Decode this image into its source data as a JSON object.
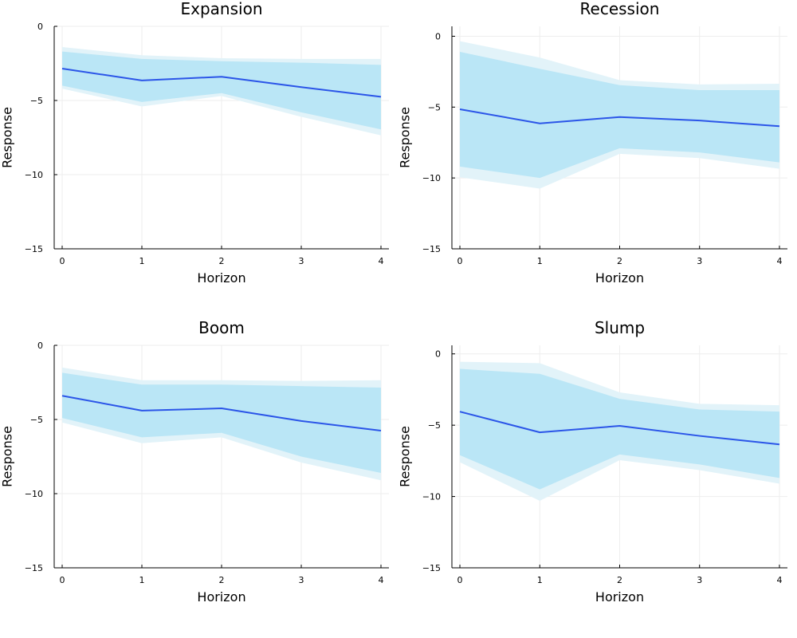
{
  "figure": {
    "colors": {
      "line": "#2b55e8",
      "inner_band": "#bae6f6",
      "outer_band": "#e2f3f9",
      "grid": "#eeeeee",
      "axis": "#000000"
    }
  },
  "chart_data": [
    {
      "type": "line",
      "title": "Expansion",
      "xlabel": "Horizon",
      "ylabel": "Response",
      "x": [
        0,
        1,
        2,
        3,
        4
      ],
      "xlim": [
        -0.1,
        4.1
      ],
      "ylim": [
        -15,
        0
      ],
      "xticks": [
        0,
        1,
        2,
        3,
        4
      ],
      "yticks": [
        0,
        -5,
        -10,
        -15
      ],
      "grid": true,
      "series": [
        {
          "values": [
            -2.85,
            -3.65,
            -3.4,
            -4.1,
            -4.75
          ],
          "inner_band": {
            "lower": [
              -4.0,
              -5.1,
              -4.5,
              -5.8,
              -6.95
            ],
            "upper": [
              -1.7,
              -2.2,
              -2.35,
              -2.45,
              -2.6
            ]
          },
          "outer_band": {
            "lower": [
              -4.2,
              -5.4,
              -4.7,
              -6.1,
              -7.35
            ],
            "upper": [
              -1.4,
              -1.95,
              -2.15,
              -2.2,
              -2.2
            ]
          }
        }
      ]
    },
    {
      "type": "line",
      "title": "Recession",
      "xlabel": "Horizon",
      "ylabel": "Response",
      "x": [
        0,
        1,
        2,
        3,
        4
      ],
      "xlim": [
        -0.1,
        4.1
      ],
      "ylim": [
        -15,
        0.7
      ],
      "xticks": [
        0,
        1,
        2,
        3,
        4
      ],
      "yticks": [
        0,
        -5,
        -10,
        -15
      ],
      "grid": true,
      "series": [
        {
          "values": [
            -5.15,
            -6.15,
            -5.7,
            -5.95,
            -6.35
          ],
          "inner_band": {
            "lower": [
              -9.2,
              -10.0,
              -7.9,
              -8.2,
              -8.9
            ],
            "upper": [
              -1.1,
              -2.3,
              -3.45,
              -3.8,
              -3.8
            ]
          },
          "outer_band": {
            "lower": [
              -9.95,
              -10.75,
              -8.3,
              -8.6,
              -9.35
            ],
            "upper": [
              -0.35,
              -1.5,
              -3.1,
              -3.4,
              -3.35
            ]
          }
        }
      ]
    },
    {
      "type": "line",
      "title": "Boom",
      "xlabel": "Horizon",
      "ylabel": "Response",
      "x": [
        0,
        1,
        2,
        3,
        4
      ],
      "xlim": [
        -0.1,
        4.1
      ],
      "ylim": [
        -15,
        0
      ],
      "xticks": [
        0,
        1,
        2,
        3,
        4
      ],
      "yticks": [
        0,
        -5,
        -10,
        -15
      ],
      "grid": true,
      "series": [
        {
          "values": [
            -3.4,
            -4.4,
            -4.25,
            -5.1,
            -5.75
          ],
          "inner_band": {
            "lower": [
              -4.9,
              -6.2,
              -5.9,
              -7.5,
              -8.6
            ],
            "upper": [
              -1.85,
              -2.65,
              -2.65,
              -2.75,
              -2.85
            ]
          },
          "outer_band": {
            "lower": [
              -5.2,
              -6.6,
              -6.2,
              -7.9,
              -9.1
            ],
            "upper": [
              -1.5,
              -2.35,
              -2.35,
              -2.4,
              -2.35
            ]
          }
        }
      ]
    },
    {
      "type": "line",
      "title": "Slump",
      "xlabel": "Horizon",
      "ylabel": "Response",
      "x": [
        0,
        1,
        2,
        3,
        4
      ],
      "xlim": [
        -0.1,
        4.1
      ],
      "ylim": [
        -15,
        0.6
      ],
      "xticks": [
        0,
        1,
        2,
        3,
        4
      ],
      "yticks": [
        0,
        -5,
        -10,
        -15
      ],
      "grid": true,
      "series": [
        {
          "values": [
            -4.05,
            -5.5,
            -5.05,
            -5.75,
            -6.35
          ],
          "inner_band": {
            "lower": [
              -7.1,
              -9.5,
              -7.05,
              -7.75,
              -8.7
            ],
            "upper": [
              -1.05,
              -1.4,
              -3.15,
              -3.9,
              -4.05
            ]
          },
          "outer_band": {
            "lower": [
              -7.6,
              -10.3,
              -7.45,
              -8.15,
              -9.1
            ],
            "upper": [
              -0.55,
              -0.65,
              -2.7,
              -3.5,
              -3.6
            ]
          }
        }
      ]
    }
  ]
}
